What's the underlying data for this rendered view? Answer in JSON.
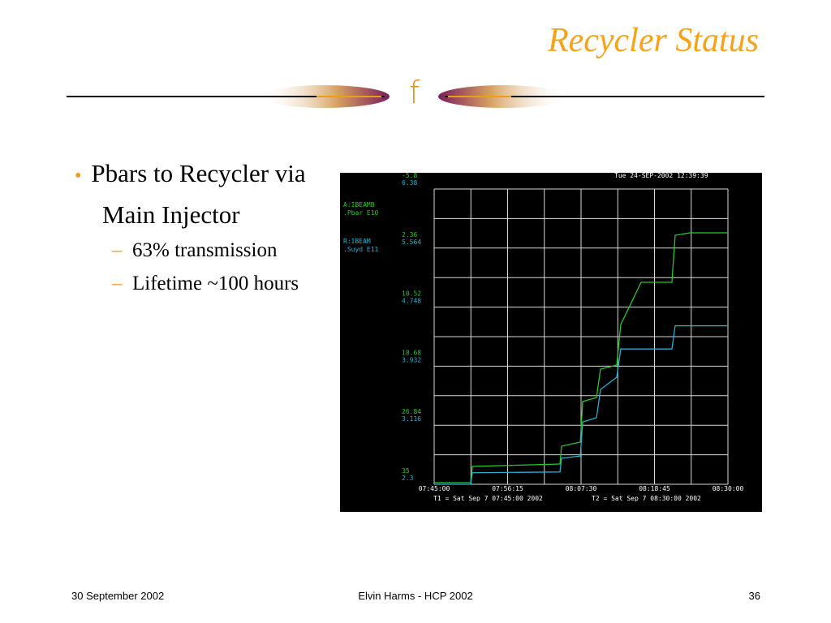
{
  "slide": {
    "title": "Recycler Status",
    "logo": "f",
    "bullets": [
      {
        "text": "Pbars to Recycler via Main Injector",
        "sub": [
          "63% transmission",
          "Lifetime ~100 hours"
        ]
      }
    ],
    "footer": {
      "left": "30 September 2002",
      "center": "Elvin Harms - HCP 2002",
      "right": "36"
    }
  },
  "chart_data": {
    "type": "line",
    "timestamp": "Tue 24-SEP-2002 12:39:39",
    "t1": "T1 = Sat Sep  7 07:45:00 2002",
    "t2": "T2 = Sat Sep  7 08:30:00 2002",
    "x": [
      "07:45:00",
      "07:50:36",
      "07:50:51",
      "08:04:16",
      "08:04:31",
      "08:07:23",
      "08:07:45",
      "08:09:52",
      "08:10:29",
      "08:12:58",
      "08:13:35",
      "08:16:42",
      "08:21:25",
      "08:21:55",
      "08:24:10",
      "08:30:00"
    ],
    "xlim": [
      "07:45:00",
      "08:30:00"
    ],
    "xticks": [
      "07:45:00",
      "07:56:15",
      "08:07:30",
      "08:18:45",
      "08:30:00"
    ],
    "ylim": [
      35,
      -5.8
    ],
    "yticks": [
      35,
      26.84,
      18.68,
      10.52,
      2.36,
      -5.8
    ],
    "y2lim": [
      2.3,
      6.38
    ],
    "y2ticks": [
      2.3,
      3.116,
      3.932,
      4.748,
      5.564,
      6.38
    ],
    "grid": true,
    "series": [
      {
        "name": "A:IBEAMB",
        "detail": ".Pbar   E10",
        "color": "#2bc82b",
        "axis": "y",
        "values": [
          34.78,
          34.78,
          32.53,
          32.2,
          29.73,
          29.17,
          23.57,
          23.0,
          19.08,
          18.52,
          12.92,
          7.09,
          7.09,
          0.59,
          0.25,
          0.25
        ]
      },
      {
        "name": "R:IBEAM",
        "detail": ".Suyd  E11",
        "color": "#2aaed0",
        "axis": "y2",
        "values": [
          2.3,
          2.3,
          2.46,
          2.47,
          2.66,
          2.69,
          3.16,
          3.22,
          3.61,
          3.78,
          4.17,
          4.17,
          4.17,
          4.49,
          4.49,
          4.49
        ]
      }
    ]
  }
}
